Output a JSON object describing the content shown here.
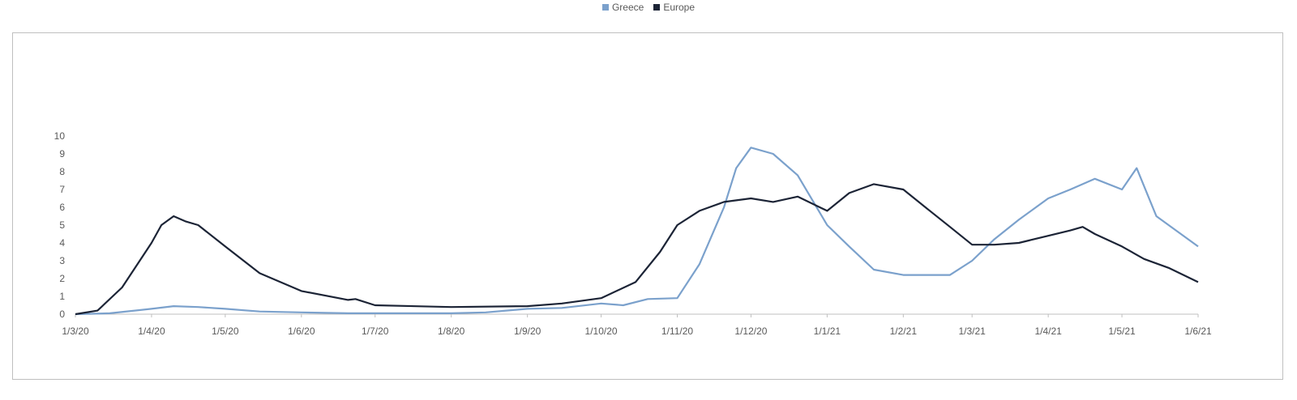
{
  "chart_data": {
    "type": "line",
    "title": "",
    "xlabel": "",
    "ylabel": "",
    "ylim": [
      0,
      10
    ],
    "yticks": [
      "0",
      "1",
      "2",
      "3",
      "4",
      "5",
      "6",
      "7",
      "8",
      "9",
      "10"
    ],
    "xticks": [
      "1/3/20",
      "1/4/20",
      "1/5/20",
      "1/6/20",
      "1/7/20",
      "1/8/20",
      "1/9/20",
      "1/10/20",
      "1/11/20",
      "1/12/20",
      "1/1/21",
      "1/2/21",
      "1/3/21",
      "1/4/21",
      "1/5/21",
      "1/6/21"
    ],
    "grid": false,
    "legend_position": "top-center",
    "series": [
      {
        "name": "Greece",
        "color": "#7ba1cc",
        "points": [
          [
            "1/3/20",
            0.0
          ],
          [
            "15/3/20",
            0.05
          ],
          [
            "1/4/20",
            0.3
          ],
          [
            "10/4/20",
            0.45
          ],
          [
            "20/4/20",
            0.4
          ],
          [
            "1/5/20",
            0.3
          ],
          [
            "15/5/20",
            0.15
          ],
          [
            "1/6/20",
            0.1
          ],
          [
            "20/6/20",
            0.05
          ],
          [
            "1/7/20",
            0.05
          ],
          [
            "1/8/20",
            0.05
          ],
          [
            "15/8/20",
            0.1
          ],
          [
            "1/9/20",
            0.3
          ],
          [
            "15/9/20",
            0.35
          ],
          [
            "1/10/20",
            0.6
          ],
          [
            "10/10/20",
            0.5
          ],
          [
            "20/10/20",
            0.85
          ],
          [
            "1/11/20",
            0.9
          ],
          [
            "10/11/20",
            2.8
          ],
          [
            "20/11/20",
            6.0
          ],
          [
            "25/11/20",
            8.2
          ],
          [
            "1/12/20",
            9.35
          ],
          [
            "10/12/20",
            9.0
          ],
          [
            "20/12/20",
            7.8
          ],
          [
            "1/1/21",
            5.0
          ],
          [
            "10/1/21",
            3.8
          ],
          [
            "20/1/21",
            2.5
          ],
          [
            "1/2/21",
            2.2
          ],
          [
            "10/2/21",
            2.2
          ],
          [
            "20/2/21",
            2.2
          ],
          [
            "1/3/21",
            3.0
          ],
          [
            "10/3/21",
            4.2
          ],
          [
            "20/3/21",
            5.3
          ],
          [
            "1/4/21",
            6.5
          ],
          [
            "10/4/21",
            7.0
          ],
          [
            "20/4/21",
            7.6
          ],
          [
            "1/5/21",
            7.0
          ],
          [
            "7/5/21",
            8.2
          ],
          [
            "15/5/21",
            5.5
          ],
          [
            "25/5/21",
            4.5
          ],
          [
            "1/6/21",
            3.8
          ]
        ]
      },
      {
        "name": "Europe",
        "color": "#1c2436",
        "points": [
          [
            "1/3/20",
            0.0
          ],
          [
            "10/3/20",
            0.2
          ],
          [
            "20/3/20",
            1.5
          ],
          [
            "1/4/20",
            4.0
          ],
          [
            "5/4/20",
            5.0
          ],
          [
            "10/4/20",
            5.5
          ],
          [
            "15/4/20",
            5.2
          ],
          [
            "20/4/20",
            5.0
          ],
          [
            "1/5/20",
            3.8
          ],
          [
            "15/5/20",
            2.3
          ],
          [
            "1/6/20",
            1.3
          ],
          [
            "20/6/20",
            0.8
          ],
          [
            "23/6/20",
            0.85
          ],
          [
            "1/7/20",
            0.5
          ],
          [
            "1/8/20",
            0.4
          ],
          [
            "1/9/20",
            0.45
          ],
          [
            "15/9/20",
            0.6
          ],
          [
            "1/10/20",
            0.9
          ],
          [
            "15/10/20",
            1.8
          ],
          [
            "25/10/20",
            3.5
          ],
          [
            "1/11/20",
            5.0
          ],
          [
            "10/11/20",
            5.8
          ],
          [
            "20/11/20",
            6.3
          ],
          [
            "1/12/20",
            6.5
          ],
          [
            "10/12/20",
            6.3
          ],
          [
            "20/12/20",
            6.6
          ],
          [
            "1/1/21",
            5.8
          ],
          [
            "10/1/21",
            6.8
          ],
          [
            "20/1/21",
            7.3
          ],
          [
            "1/2/21",
            7.0
          ],
          [
            "10/2/21",
            6.0
          ],
          [
            "20/2/21",
            4.9
          ],
          [
            "1/3/21",
            3.9
          ],
          [
            "10/3/21",
            3.9
          ],
          [
            "20/3/21",
            4.0
          ],
          [
            "1/4/21",
            4.4
          ],
          [
            "10/4/21",
            4.7
          ],
          [
            "15/4/21",
            4.9
          ],
          [
            "20/4/21",
            4.5
          ],
          [
            "1/5/21",
            3.8
          ],
          [
            "10/5/21",
            3.1
          ],
          [
            "20/5/21",
            2.6
          ],
          [
            "1/6/21",
            1.8
          ]
        ]
      }
    ]
  }
}
